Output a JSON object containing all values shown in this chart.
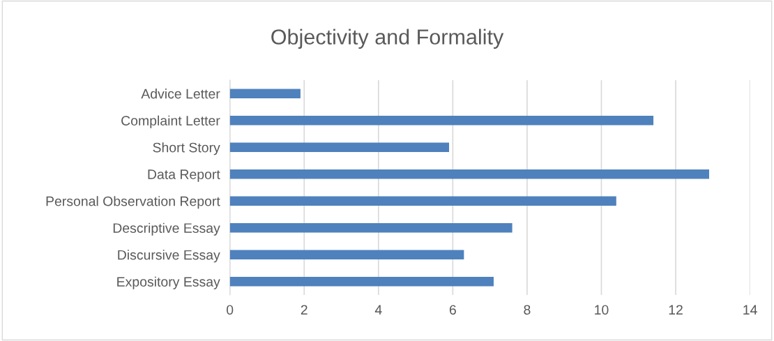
{
  "chart_data": {
    "type": "bar",
    "orientation": "horizontal",
    "title": "Objectivity and Formality",
    "categories": [
      "Advice Letter",
      "Complaint Letter",
      "Short Story",
      "Data Report",
      "Personal Observation Report",
      "Descriptive Essay",
      "Discursive Essay",
      "Expository Essay"
    ],
    "values": [
      1.9,
      11.4,
      5.9,
      12.9,
      10.4,
      7.6,
      6.3,
      7.1
    ],
    "color": "#4f81bd",
    "xlim": [
      0,
      14
    ],
    "xticks": [
      0,
      2,
      4,
      6,
      8,
      10,
      12,
      14
    ],
    "grid": "x",
    "legend": false
  }
}
